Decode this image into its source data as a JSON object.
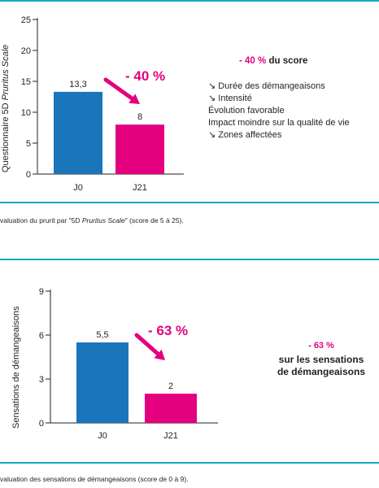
{
  "chart_data": [
    {
      "type": "bar",
      "categories": [
        "J0",
        "J21"
      ],
      "values": [
        13.3,
        8
      ],
      "value_labels": [
        "13,3",
        "8"
      ],
      "ylim": [
        0,
        25
      ],
      "yticks": [
        "0",
        "5",
        "10",
        "15",
        "20",
        "25"
      ],
      "ylabel_normal": "Questionnaire 5D ",
      "ylabel_italic": "Pruritus Scale",
      "bar_colors": [
        "#1b75bb",
        "#e4007e"
      ],
      "annotation": "- 40 %",
      "side_title_pct": "- 40 %",
      "side_title_rest": " du score",
      "side_items": [
        "↘ Durée des démangeaisons",
        "↘ Intensité",
        "Évolution favorable",
        "Impact moindre sur la qualité de vie",
        "↘ Zones affectées"
      ],
      "caption_start": "valuation du prurit par \"5D ",
      "caption_italic": "Pruritus Scale",
      "caption_end": "\" (score de 5 à 25)."
    },
    {
      "type": "bar",
      "categories": [
        "J0",
        "J21"
      ],
      "values": [
        5.5,
        2
      ],
      "value_labels": [
        "5,5",
        "2"
      ],
      "ylim": [
        0,
        9
      ],
      "yticks": [
        "0",
        "3",
        "6",
        "9"
      ],
      "ylabel": "Sensations de démangeaisons",
      "bar_colors": [
        "#1b75bb",
        "#e4007e"
      ],
      "annotation": "- 63 %",
      "side_pct": "- 63 %",
      "side_line1": "sur les sensations",
      "side_line2": "de démangeaisons",
      "caption": "valuation des sensations de démangeaisons (score de 0 à 9)."
    }
  ],
  "colors": {
    "blue": "#1b75bb",
    "magenta": "#e4007e",
    "rule": "#1aa6c6"
  }
}
